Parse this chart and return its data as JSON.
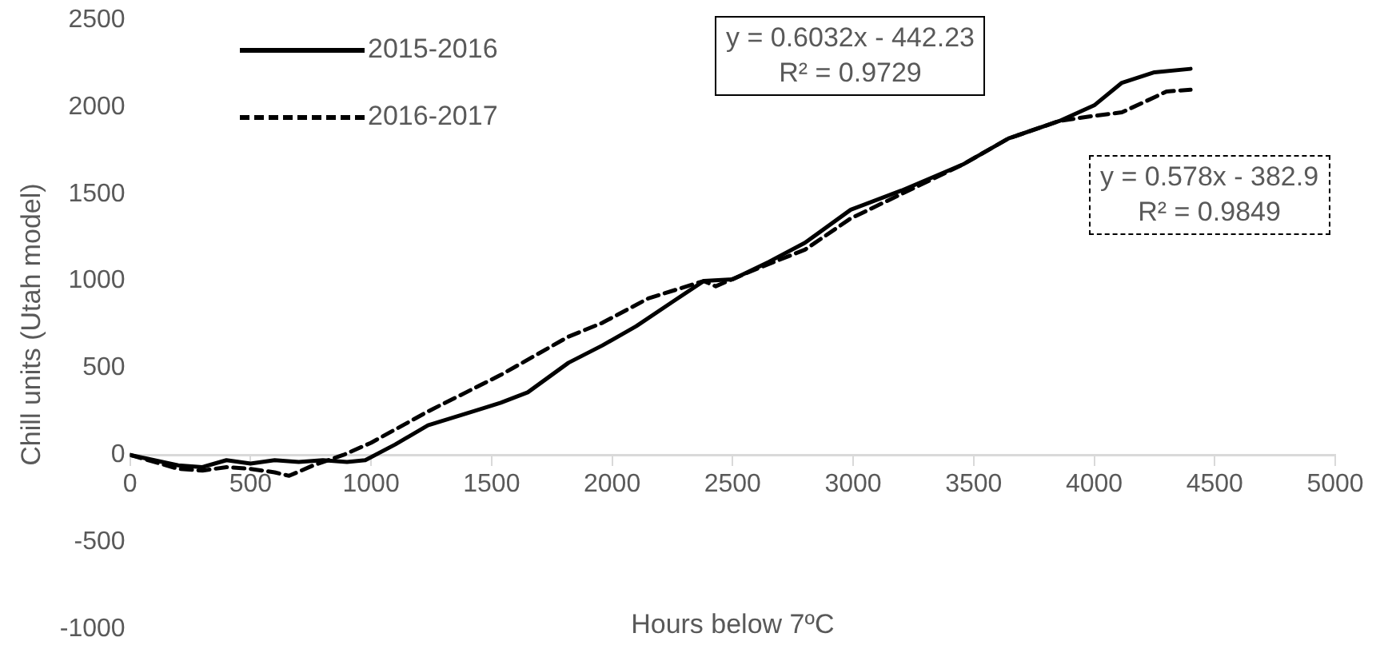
{
  "chart_data": {
    "type": "line",
    "xlabel": "Hours below 7ºC",
    "ylabel": "Chill units (Utah model)",
    "xlim": [
      0,
      5000
    ],
    "xticks": [
      0,
      500,
      1000,
      1500,
      2000,
      2500,
      3000,
      3500,
      4000,
      4500,
      5000
    ],
    "ylim": [
      -1000,
      2500
    ],
    "yticks": [
      -1000,
      -500,
      0,
      500,
      1000,
      1500,
      2000,
      2500
    ],
    "grid": false,
    "legend": "top left",
    "marker": "none",
    "series": [
      {
        "name": "2015-2016",
        "color": "#000000",
        "line_style": "solid",
        "x": [
          0,
          100,
          200,
          300,
          400,
          500,
          600,
          700,
          800,
          900,
          976,
          1100,
          1236,
          1400,
          1538,
          1650,
          1819,
          1960,
          2100,
          2250,
          2380,
          2500,
          2650,
          2800,
          2990,
          3200,
          3455,
          3645,
          3855,
          4000,
          4115,
          4250,
          4400
        ],
        "values": [
          0,
          -30,
          -60,
          -70,
          -30,
          -50,
          -30,
          -40,
          -30,
          -40,
          -30,
          60,
          170,
          240,
          300,
          360,
          530,
          630,
          740,
          880,
          1000,
          1010,
          1110,
          1220,
          1410,
          1520,
          1670,
          1820,
          1920,
          2010,
          2140,
          2200,
          2220
        ]
      },
      {
        "name": "2016-2017",
        "color": "#000000",
        "line_style": "dashed",
        "x": [
          0,
          100,
          200,
          300,
          400,
          500,
          600,
          660,
          760,
          885,
          1000,
          1236,
          1538,
          1819,
          1960,
          2150,
          2380,
          2430,
          2600,
          2800,
          2990,
          3200,
          3455,
          3645,
          3855,
          4000,
          4115,
          4255,
          4300,
          4400
        ],
        "values": [
          0,
          -40,
          -80,
          -90,
          -70,
          -80,
          -100,
          -120,
          -60,
          0,
          70,
          250,
          460,
          680,
          760,
          900,
          1000,
          970,
          1070,
          1180,
          1360,
          1500,
          1670,
          1820,
          1920,
          1950,
          1970,
          2060,
          2090,
          2100
        ]
      }
    ],
    "annotations": [
      "y = 0.6032x - 442.23\nR² = 0.9729",
      "y = 0.578x - 382.9\nR² = 0.9849"
    ]
  }
}
